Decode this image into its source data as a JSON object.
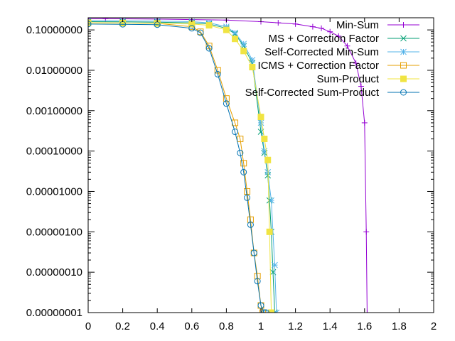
{
  "chart_data": {
    "type": "line",
    "title": "",
    "xlabel": "",
    "ylabel": "",
    "xlim": [
      0,
      2
    ],
    "ylim": [
      1e-08,
      0.2
    ],
    "yscale": "log",
    "grid": false,
    "legend_position": "top-right",
    "x_ticks": [
      "0",
      "0.2",
      "0.4",
      "0.6",
      "0.8",
      "1",
      "1.2",
      "1.4",
      "1.6",
      "1.8",
      "2"
    ],
    "y_ticks": [
      "0.10000000",
      "0.01000000",
      "0.00100000",
      "0.00010000",
      "0.00001000",
      "0.00000100",
      "0.00000010",
      "0.00000001"
    ],
    "series": [
      {
        "name": "Min-Sum",
        "color": "#9400d3",
        "marker": "plus",
        "x": [
          0.0,
          0.1,
          0.2,
          0.4,
          0.6,
          0.8,
          1.0,
          1.1,
          1.2,
          1.3,
          1.35,
          1.4,
          1.45,
          1.5,
          1.55,
          1.58,
          1.6,
          1.61,
          1.615
        ],
        "y": [
          0.19,
          0.19,
          0.188,
          0.185,
          0.18,
          0.175,
          0.16,
          0.15,
          0.14,
          0.12,
          0.11,
          0.09,
          0.07,
          0.04,
          0.015,
          0.004,
          0.0005,
          1e-06,
          1e-08
        ]
      },
      {
        "name": "MS + Correction Factor",
        "color": "#009e73",
        "marker": "x",
        "x": [
          0.0,
          0.2,
          0.4,
          0.6,
          0.7,
          0.8,
          0.85,
          0.9,
          0.95,
          1.0,
          1.02,
          1.04,
          1.05,
          1.06,
          1.07,
          1.08
        ],
        "y": [
          0.16,
          0.158,
          0.155,
          0.15,
          0.14,
          0.11,
          0.08,
          0.04,
          0.015,
          0.0003,
          9e-05,
          2.5e-05,
          6e-06,
          1e-06,
          1e-07,
          1e-08
        ]
      },
      {
        "name": "Self-Corrected Min-Sum",
        "color": "#56b4e9",
        "marker": "star",
        "x": [
          0.0,
          0.2,
          0.4,
          0.6,
          0.7,
          0.8,
          0.85,
          0.9,
          0.95,
          1.0,
          1.02,
          1.04,
          1.06,
          1.08,
          1.09
        ],
        "y": [
          0.17,
          0.168,
          0.165,
          0.16,
          0.15,
          0.12,
          0.085,
          0.045,
          0.018,
          0.0005,
          0.0001,
          3e-05,
          6e-06,
          1.5e-07,
          1e-08
        ]
      },
      {
        "name": "ICMS + Correction Factor",
        "color": "#e69f00",
        "marker": "open-square",
        "x": [
          0.0,
          0.2,
          0.4,
          0.6,
          0.65,
          0.7,
          0.75,
          0.8,
          0.85,
          0.88,
          0.9,
          0.92,
          0.94,
          0.96,
          0.98,
          1.0,
          1.01
        ],
        "y": [
          0.15,
          0.148,
          0.145,
          0.12,
          0.09,
          0.04,
          0.01,
          0.002,
          0.0005,
          0.0002,
          5e-05,
          1e-05,
          2e-06,
          3e-07,
          8e-08,
          1.5e-08,
          1e-08
        ]
      },
      {
        "name": "Sum-Product",
        "color": "#f0e442",
        "marker": "filled-square",
        "x": [
          0.0,
          0.2,
          0.4,
          0.6,
          0.7,
          0.8,
          0.85,
          0.9,
          0.95,
          1.0,
          1.02,
          1.04,
          1.05,
          1.06
        ],
        "y": [
          0.15,
          0.148,
          0.145,
          0.14,
          0.13,
          0.1,
          0.06,
          0.03,
          0.012,
          0.0007,
          0.0002,
          6e-05,
          1e-06,
          1e-08
        ]
      },
      {
        "name": "Self-Corrected Sum-Product",
        "color": "#0072b2",
        "marker": "open-circle",
        "x": [
          0.0,
          0.2,
          0.4,
          0.6,
          0.65,
          0.7,
          0.75,
          0.8,
          0.85,
          0.88,
          0.9,
          0.92,
          0.94,
          0.96,
          0.98,
          1.0,
          1.02,
          1.03
        ],
        "y": [
          0.14,
          0.138,
          0.135,
          0.11,
          0.085,
          0.035,
          0.008,
          0.0015,
          0.0003,
          9e-05,
          3e-05,
          7e-06,
          1.5e-06,
          3e-07,
          6e-08,
          1.5e-08,
          1e-08,
          1e-08
        ]
      }
    ]
  }
}
